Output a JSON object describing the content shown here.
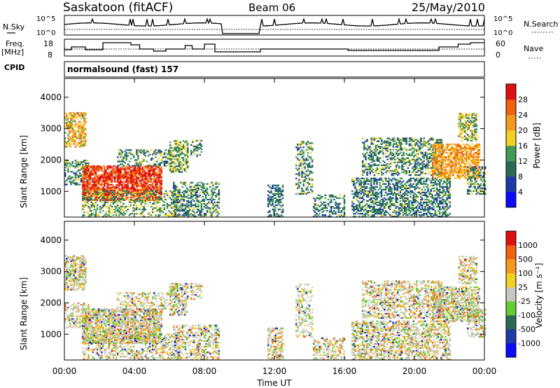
{
  "header": {
    "station": "Saskatoon (fitACF)",
    "beam": "Beam 06",
    "date": "25/May/2010"
  },
  "top_panels": {
    "nsky_label": "N.Sky",
    "nsky_ticks": [
      "10^5",
      "10^0"
    ],
    "nsearch_label": "N.Search",
    "nsearch_ticks": [
      "10^5",
      "10^0"
    ],
    "freq_label": "Freq.",
    "freq_unit": "[MHz]",
    "freq_ticks": [
      "18",
      "8"
    ],
    "nave_label": "Nave",
    "nave_ticks": [
      "60",
      "0"
    ],
    "cpid_label": "CPID",
    "cpid_text": "normalsound (fast) 157"
  },
  "colors": {
    "power_scale": [
      "#0a0aff",
      "#1f3aa8",
      "#2a6a55",
      "#3f9a55",
      "#f2d020",
      "#f29a20",
      "#f06010",
      "#e01010"
    ],
    "velocity_scale": [
      "#0a0aff",
      "#1f3aa8",
      "#2a6a55",
      "#66cc33",
      "#c8c8c0",
      "#f2d020",
      "#f29a20",
      "#f06010",
      "#e01010"
    ]
  },
  "chart_data": [
    {
      "type": "line",
      "panel": "N.Sky / N.Search",
      "y_scale": "log",
      "ylim": [
        1,
        100000
      ],
      "x_range_hours": [
        0,
        24
      ],
      "data_gap_hours": [
        9.0,
        11.2
      ]
    },
    {
      "type": "line",
      "panel": "Freq. / Nave",
      "freq_ylim": [
        8,
        18
      ],
      "nave_ylim": [
        0,
        60
      ],
      "x_range_hours": [
        0,
        24
      ],
      "data_gap_hours": [
        9.0,
        11.2
      ]
    },
    {
      "type": "heatmap",
      "panel": "power",
      "xlabel": "",
      "ylabel": "Slant Range [km]",
      "x_ticks": [
        "00:00",
        "04:00",
        "08:00",
        "12:00",
        "16:00",
        "20:00",
        "00:00"
      ],
      "y_ticks": [
        "1000",
        "2000",
        "3000",
        "4000"
      ],
      "ylim": [
        180,
        4600
      ],
      "colorbar_label": "Power [dB]",
      "colorbar_ticks": [
        "28",
        "24",
        "20",
        "16",
        "12",
        "8",
        "4"
      ],
      "zlim": [
        0,
        32
      ]
    },
    {
      "type": "heatmap",
      "panel": "velocity",
      "xlabel": "Time UT",
      "ylabel": "Slant Range [km]",
      "x_ticks": [
        "00:00",
        "04:00",
        "08:00",
        "12:00",
        "16:00",
        "20:00",
        "00:00"
      ],
      "y_ticks": [
        "1000",
        "2000",
        "3000",
        "4000"
      ],
      "ylim": [
        180,
        4600
      ],
      "colorbar_label": "Velocity [m s⁻¹]",
      "colorbar_ticks": [
        "1000",
        "500",
        "100",
        "25",
        "-25",
        "-100",
        "-500",
        "-1000"
      ]
    }
  ]
}
